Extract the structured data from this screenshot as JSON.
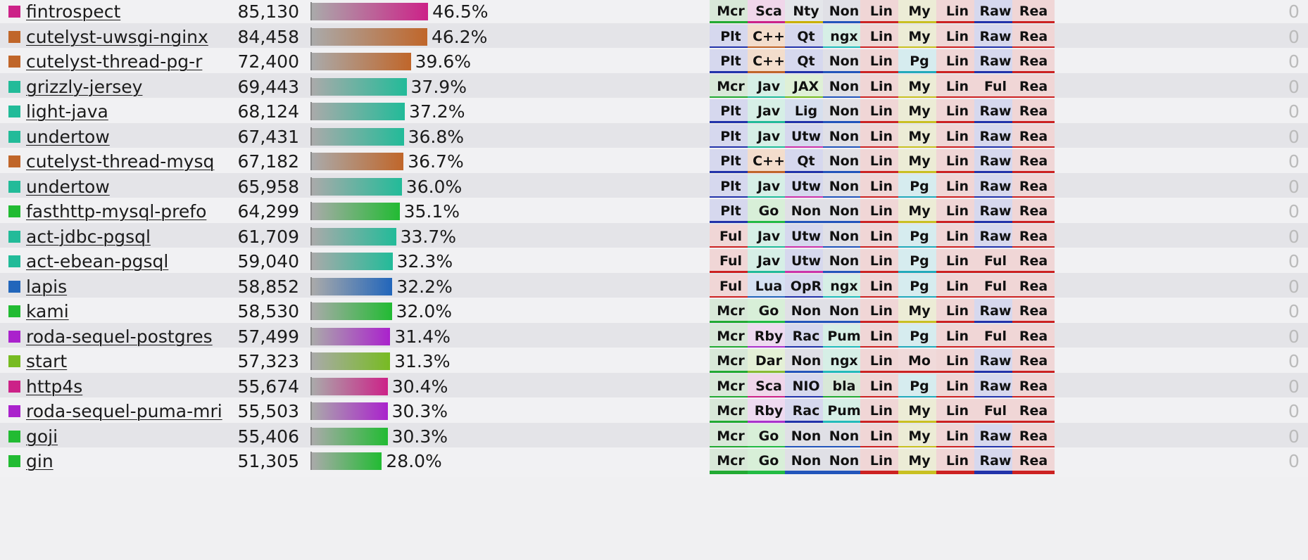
{
  "colors": {
    "bar_start": "#aaaaaa",
    "row_even": "#f1f1f3",
    "row_odd": "#e4e4e8",
    "tag_backgrounds": {
      "Mcr": "#d8e8d8",
      "Plt": "#d6d8ee",
      "Ful": "#f0d6d6",
      "Sca": "#f0d6ea",
      "C++": "#f3ddcc",
      "Jav": "#d6efe6",
      "Lua": "#d6e2f2",
      "Go": "#d8efd8",
      "Rby": "#eedaf0",
      "Dar": "#e4f0d6",
      "Nty": "#e4e6ea",
      "Qt": "#d6d8ee",
      "JAX": "#dff0d6",
      "Lig": "#d6dfee",
      "Utw": "#d6d8ee",
      "Non": "#e0e0e6",
      "OpR": "#d6d8ee",
      "Rac": "#d6d8ee",
      "NIO": "#d6d8ee",
      "ngx": "#d6efe6",
      "Pum": "#d6efe6",
      "bla": "#d8e8d8",
      "Lin": "#f0d6d6",
      "My": "#ececd6",
      "Pg": "#d6ecef",
      "Mo": "#f0dada",
      "Raw": "#d6d8ee",
      "Rea": "#f0d6d6"
    },
    "tag_underlines": {
      "Mcr": "#22aa33",
      "Plt": "#2233aa",
      "Ful": "#cc2222",
      "Sca": "#cc2288",
      "C++": "#c0662a",
      "Jav": "#22bb99",
      "Lua": "#2266bb",
      "Go": "#22bb44",
      "Rby": "#aa33cc",
      "Dar": "#88bb33",
      "Nty": "#c9b000",
      "Qt": "#2233aa",
      "JAX": "#77bb22",
      "Lig": "#2233aa",
      "Utw": "#cc33aa",
      "Non": "#2255bb",
      "OpR": "#2233aa",
      "Rac": "#2233aa",
      "NIO": "#2233aa",
      "ngx": "#22bbbb",
      "Pum": "#22bbbb",
      "bla": "#22aa33",
      "Lin": "#cc2222",
      "My": "#c9c022",
      "Pg": "#22aabb",
      "Mo": "#cc2222",
      "Raw": "#2233aa",
      "Rea": "#cc2222"
    }
  },
  "rows": [
    {
      "name": "fintrospect",
      "rps": "85,130",
      "pct_text": "46.5%",
      "pct": 46.5,
      "color": "#cc2288",
      "tags": [
        "Mcr",
        "Sca",
        "Nty",
        "Non",
        "Lin",
        "My",
        "Lin",
        "Raw",
        "Rea"
      ],
      "errors": "0"
    },
    {
      "name": "cutelyst-uwsgi-nginx",
      "rps": "84,458",
      "pct_text": "46.2%",
      "pct": 46.2,
      "color": "#c0662a",
      "tags": [
        "Plt",
        "C++",
        "Qt",
        "ngx",
        "Lin",
        "My",
        "Lin",
        "Raw",
        "Rea"
      ],
      "errors": "0"
    },
    {
      "name": "cutelyst-thread-pg-r",
      "rps": "72,400",
      "pct_text": "39.6%",
      "pct": 39.6,
      "color": "#c0662a",
      "tags": [
        "Plt",
        "C++",
        "Qt",
        "Non",
        "Lin",
        "Pg",
        "Lin",
        "Raw",
        "Rea"
      ],
      "errors": "0"
    },
    {
      "name": "grizzly-jersey",
      "rps": "69,443",
      "pct_text": "37.9%",
      "pct": 37.9,
      "color": "#22bb99",
      "tags": [
        "Mcr",
        "Jav",
        "JAX",
        "Non",
        "Lin",
        "My",
        "Lin",
        "Ful",
        "Rea"
      ],
      "errors": "0"
    },
    {
      "name": "light-java",
      "rps": "68,124",
      "pct_text": "37.2%",
      "pct": 37.2,
      "color": "#22bb99",
      "tags": [
        "Plt",
        "Jav",
        "Lig",
        "Non",
        "Lin",
        "My",
        "Lin",
        "Raw",
        "Rea"
      ],
      "errors": "0"
    },
    {
      "name": "undertow",
      "rps": "67,431",
      "pct_text": "36.8%",
      "pct": 36.8,
      "color": "#22bb99",
      "tags": [
        "Plt",
        "Jav",
        "Utw",
        "Non",
        "Lin",
        "My",
        "Lin",
        "Raw",
        "Rea"
      ],
      "errors": "0"
    },
    {
      "name": "cutelyst-thread-mysq",
      "rps": "67,182",
      "pct_text": "36.7%",
      "pct": 36.7,
      "color": "#c0662a",
      "tags": [
        "Plt",
        "C++",
        "Qt",
        "Non",
        "Lin",
        "My",
        "Lin",
        "Raw",
        "Rea"
      ],
      "errors": "0"
    },
    {
      "name": "undertow",
      "rps": "65,958",
      "pct_text": "36.0%",
      "pct": 36.0,
      "color": "#22bb99",
      "tags": [
        "Plt",
        "Jav",
        "Utw",
        "Non",
        "Lin",
        "Pg",
        "Lin",
        "Raw",
        "Rea"
      ],
      "errors": "0"
    },
    {
      "name": "fasthttp-mysql-prefo",
      "rps": "64,299",
      "pct_text": "35.1%",
      "pct": 35.1,
      "color": "#22bb33",
      "tags": [
        "Plt",
        "Go",
        "Non",
        "Non",
        "Lin",
        "My",
        "Lin",
        "Raw",
        "Rea"
      ],
      "errors": "0"
    },
    {
      "name": "act-jdbc-pgsql",
      "rps": "61,709",
      "pct_text": "33.7%",
      "pct": 33.7,
      "color": "#22bb99",
      "tags": [
        "Ful",
        "Jav",
        "Utw",
        "Non",
        "Lin",
        "Pg",
        "Lin",
        "Raw",
        "Rea"
      ],
      "errors": "0"
    },
    {
      "name": "act-ebean-pgsql",
      "rps": "59,040",
      "pct_text": "32.3%",
      "pct": 32.3,
      "color": "#22bb99",
      "tags": [
        "Ful",
        "Jav",
        "Utw",
        "Non",
        "Lin",
        "Pg",
        "Lin",
        "Ful",
        "Rea"
      ],
      "errors": "0"
    },
    {
      "name": "lapis",
      "rps": "58,852",
      "pct_text": "32.2%",
      "pct": 32.2,
      "color": "#2266bb",
      "tags": [
        "Ful",
        "Lua",
        "OpR",
        "ngx",
        "Lin",
        "Pg",
        "Lin",
        "Ful",
        "Rea"
      ],
      "errors": "0"
    },
    {
      "name": "kami",
      "rps": "58,530",
      "pct_text": "32.0%",
      "pct": 32.0,
      "color": "#22bb33",
      "tags": [
        "Mcr",
        "Go",
        "Non",
        "Non",
        "Lin",
        "My",
        "Lin",
        "Raw",
        "Rea"
      ],
      "errors": "0"
    },
    {
      "name": "roda-sequel-postgres",
      "rps": "57,499",
      "pct_text": "31.4%",
      "pct": 31.4,
      "color": "#aa22cc",
      "tags": [
        "Mcr",
        "Rby",
        "Rac",
        "Pum",
        "Lin",
        "Pg",
        "Lin",
        "Ful",
        "Rea"
      ],
      "errors": "0"
    },
    {
      "name": "start",
      "rps": "57,323",
      "pct_text": "31.3%",
      "pct": 31.3,
      "color": "#77bb22",
      "tags": [
        "Mcr",
        "Dar",
        "Non",
        "ngx",
        "Lin",
        "Mo",
        "Lin",
        "Raw",
        "Rea"
      ],
      "errors": "0"
    },
    {
      "name": "http4s",
      "rps": "55,674",
      "pct_text": "30.4%",
      "pct": 30.4,
      "color": "#cc2288",
      "tags": [
        "Mcr",
        "Sca",
        "NIO",
        "bla",
        "Lin",
        "Pg",
        "Lin",
        "Raw",
        "Rea"
      ],
      "errors": "0"
    },
    {
      "name": "roda-sequel-puma-mri",
      "rps": "55,503",
      "pct_text": "30.3%",
      "pct": 30.3,
      "color": "#aa22cc",
      "tags": [
        "Mcr",
        "Rby",
        "Rac",
        "Pum",
        "Lin",
        "My",
        "Lin",
        "Ful",
        "Rea"
      ],
      "errors": "0"
    },
    {
      "name": "goji",
      "rps": "55,406",
      "pct_text": "30.3%",
      "pct": 30.3,
      "color": "#22bb33",
      "tags": [
        "Mcr",
        "Go",
        "Non",
        "Non",
        "Lin",
        "My",
        "Lin",
        "Raw",
        "Rea"
      ],
      "errors": "0"
    },
    {
      "name": "gin",
      "rps": "51,305",
      "pct_text": "28.0%",
      "pct": 28.0,
      "color": "#22bb33",
      "tags": [
        "Mcr",
        "Go",
        "Non",
        "Non",
        "Lin",
        "My",
        "Lin",
        "Raw",
        "Rea"
      ],
      "errors": "0"
    }
  ]
}
